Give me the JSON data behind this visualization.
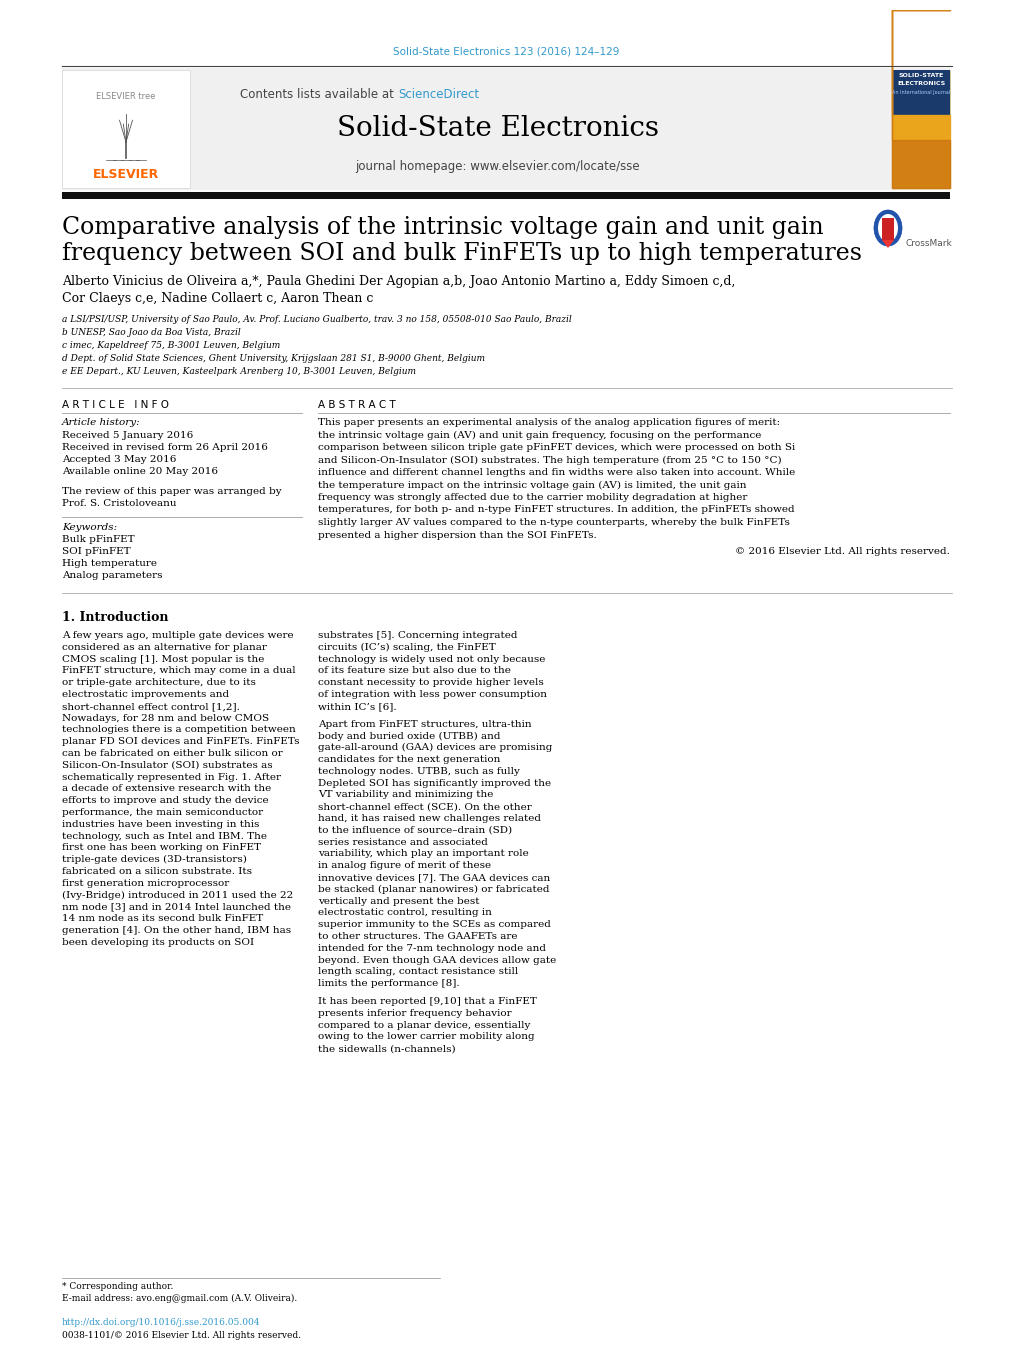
{
  "page_title": "Solid-State Electronics 123 (2016) 124–129",
  "journal_name": "Solid-State Electronics",
  "journal_url": "journal homepage: www.elsevier.com/locate/sse",
  "contents_text": "Contents lists available at",
  "science_direct": "ScienceDirect",
  "paper_title_line1": "Comparative analysis of the intrinsic voltage gain and unit gain",
  "paper_title_line2": "frequency between SOI and bulk FinFETs up to high temperatures",
  "authors": "Alberto Vinicius de Oliveira a,*, Paula Ghedini Der Agopian a,b, Joao Antonio Martino a, Eddy Simoen c,d,",
  "authors2": "Cor Claeys c,e, Nadine Collaert c, Aaron Thean c",
  "affil_a": "a LSI/PSI/USP, University of Sao Paulo, Av. Prof. Luciano Gualberto, trav. 3 no 158, 05508-010 Sao Paulo, Brazil",
  "affil_b": "b UNESP, Sao Joao da Boa Vista, Brazil",
  "affil_c": "c imec, Kapeldreef 75, B-3001 Leuven, Belgium",
  "affil_d": "d Dept. of Solid State Sciences, Ghent University, Krijgslaan 281 S1, B-9000 Ghent, Belgium",
  "affil_e": "e EE Depart., KU Leuven, Kasteelpark Arenberg 10, B-3001 Leuven, Belgium",
  "article_info_title": "A R T I C L E   I N F O",
  "abstract_title": "A B S T R A C T",
  "article_history_label": "Article history:",
  "received1": "Received 5 January 2016",
  "received2": "Received in revised form 26 April 2016",
  "accepted": "Accepted 3 May 2016",
  "available": "Available online 20 May 2016",
  "review_text": "The review of this paper was arranged by\nProf. S. Cristoloveanu",
  "keywords_label": "Keywords:",
  "keywords": [
    "Bulk pFinFET",
    "SOI pFinFET",
    "High temperature",
    "Analog parameters"
  ],
  "abstract_text": "This paper presents an experimental analysis of the analog application figures of merit: the intrinsic voltage gain (AV) and unit gain frequency, focusing on the performance comparison between silicon triple gate pFinFET devices, which were processed on both Si and Silicon-On-Insulator (SOI) substrates. The high temperature (from 25 °C to 150 °C) influence and different channel lengths and fin widths were also taken into account. While the temperature impact on the intrinsic voltage gain (AV) is limited, the unit gain frequency was strongly affected due to the carrier mobility degradation at higher temperatures, for both p- and n-type FinFET structures. In addition, the pFinFETs showed slightly larger AV values compared to the n-type counterparts, whereby the bulk FinFETs presented a higher dispersion than the SOI FinFETs.",
  "copyright_text": "© 2016 Elsevier Ltd. All rights reserved.",
  "intro_title": "1. Introduction",
  "intro_col1_para1": "    A few years ago, multiple gate devices were considered as an alternative for planar CMOS scaling [1]. Most popular is the FinFET structure, which may come in a dual or triple-gate architecture, due to its electrostatic improvements and short-channel effect control [1,2]. Nowadays, for 28 nm and below CMOS technologies there is a competition between planar FD SOI devices and FinFETs. FinFETs can be fabricated on either bulk silicon or Silicon-On-Insulator (SOI) substrates as schematically represented in Fig. 1. After a decade of extensive research with the efforts to improve and study the device performance, the main semiconductor industries have been investing in this technology, such as Intel and IBM. The first one has been working on FinFET triple-gate devices (3D-transistors) fabricated on a silicon substrate. Its first generation microprocessor (Ivy-Bridge) introduced in 2011 used the 22 nm node [3] and in 2014 Intel launched the 14 nm node as its second bulk FinFET generation [4]. On the other hand, IBM has been developing its products on SOI",
  "intro_col2_para1": "substrates [5]. Concerning integrated circuits (IC’s) scaling, the FinFET technology is widely used not only because of its feature size but also due to the constant necessity to provide higher levels of integration with less power consumption within IC’s [6].",
  "intro_col2_para2": "    Apart from FinFET structures, ultra-thin body and buried oxide (UTBB) and gate-all-around (GAA) devices are promising candidates for the next generation technology nodes. UTBB, such as fully Depleted SOI has significantly improved the VT variability and minimizing the short-channel effect (SCE). On the other hand, it has raised new challenges related to the influence of source–drain (SD) series resistance and associated variability, which play an important role in analog figure of merit of these innovative devices [7]. The GAA devices can be stacked (planar nanowires) or fabricated vertically and present the best electrostatic control, resulting in superior immunity to the SCEs as compared to other structures. The GAAFETs are intended for the 7-nm technology node and beyond. Even though GAA devices allow gate length scaling, contact resistance still limits the performance [8].",
  "intro_col2_para3": "    It has been reported [9,10] that a FinFET presents inferior frequency behavior compared to a planar device, essentially owing to the lower carrier mobility along the sidewalls (n-channels)",
  "footnote_corresponding": "* Corresponding author.",
  "footnote_email": "E-mail address: avo.eng@gmail.com (A.V. Oliveira).",
  "footnote_doi": "http://dx.doi.org/10.1016/j.sse.2016.05.004",
  "footnote_issn": "0038-1101/© 2016 Elsevier Ltd. All rights reserved.",
  "bg_header_color": "#f0f0f0",
  "black_bar_color": "#111111",
  "link_color": "#3399cc",
  "title_color": "#000000",
  "text_color": "#000000"
}
